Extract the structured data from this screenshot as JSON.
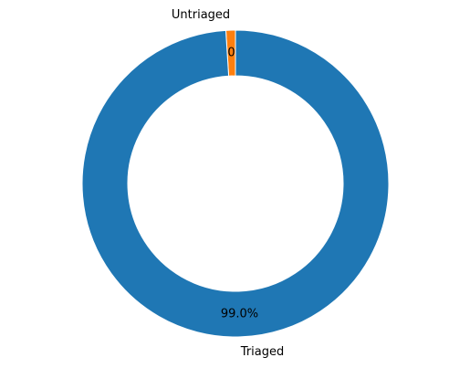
{
  "chart_data": {
    "type": "pie",
    "style": "donut",
    "start_angle_deg": 90,
    "direction": "counterclockwise",
    "slices": [
      {
        "label": "Untriaged",
        "value": 1.0,
        "pct_label": "1.0%",
        "color": "#ff7f0e"
      },
      {
        "label": "Triaged",
        "value": 99.0,
        "pct_label": "99.0%",
        "color": "#1f77b4"
      }
    ]
  }
}
